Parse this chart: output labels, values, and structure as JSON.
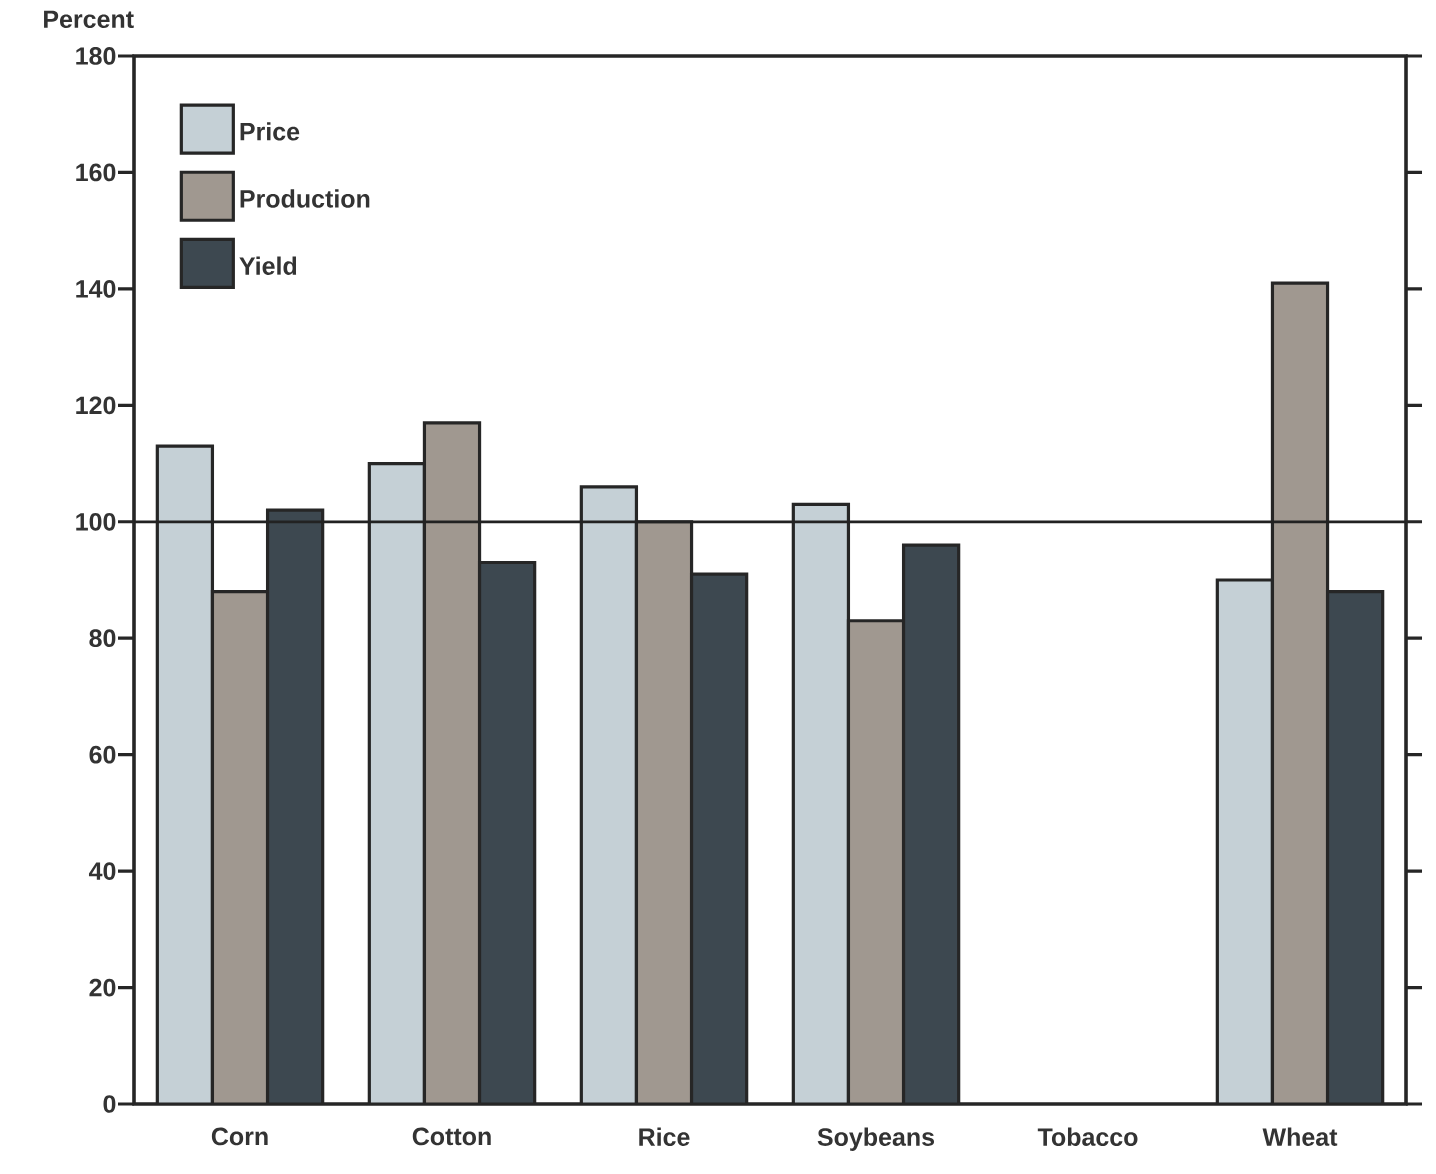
{
  "chart_data": {
    "type": "bar",
    "ylabel": "Percent",
    "categories": [
      "Corn",
      "Cotton",
      "Rice",
      "Soybeans",
      "Tobacco",
      "Wheat"
    ],
    "series": [
      {
        "name": "Price",
        "color": "#c5d0d6",
        "values": [
          113,
          110,
          106,
          103,
          null,
          90
        ]
      },
      {
        "name": "Production",
        "color": "#a09890",
        "values": [
          88,
          117,
          100,
          83,
          null,
          141
        ]
      },
      {
        "name": "Yield",
        "color": "#3d4850",
        "values": [
          102,
          93,
          91,
          96,
          null,
          88
        ]
      }
    ],
    "ylim": [
      0,
      180
    ],
    "yticks": [
      0,
      20,
      40,
      60,
      80,
      100,
      120,
      140,
      160,
      180
    ],
    "ref_lines": [
      {
        "axis": "y",
        "value": 100,
        "color": "#222222"
      }
    ],
    "legend": "top left",
    "grid": false
  }
}
